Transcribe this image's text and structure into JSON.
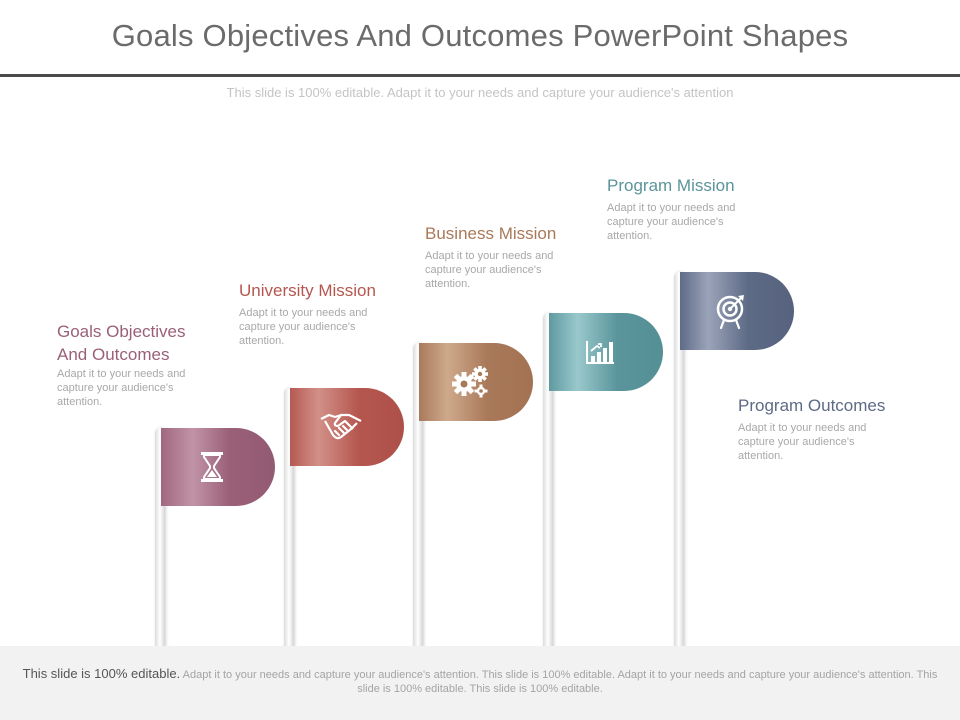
{
  "slide": {
    "title": "Goals Objectives And Outcomes PowerPoint Shapes",
    "subtitle": "This slide is 100% editable. Adapt it to your needs and capture your audience's attention"
  },
  "steps": [
    {
      "heading_line1": "Goals Objectives",
      "heading_line2": "And Outcomes",
      "description": "Adapt it to your needs and capture your audience's attention.",
      "icon": "hourglass-icon",
      "color": "#9a6078"
    },
    {
      "heading": "University Mission",
      "description": "Adapt it to your needs and capture your audience's attention.",
      "icon": "handshake-icon",
      "color": "#b5574f"
    },
    {
      "heading": "Business Mission",
      "description": "Adapt it to your needs and capture your audience's attention.",
      "icon": "gears-icon",
      "color": "#a87959"
    },
    {
      "heading": "Program Mission",
      "description": "Adapt it to your needs and capture your audience's attention.",
      "icon": "bar-chart-icon",
      "color": "#5a959b"
    },
    {
      "heading": "Program Outcomes",
      "description": "Adapt it to your needs and capture your audience's attention.",
      "icon": "target-icon",
      "color": "#5d6a85"
    }
  ],
  "footer": {
    "lead": "This slide is 100% editable.",
    "text": "Adapt it to your needs and capture your audience's attention. This slide is 100% editable. Adapt it to your needs and capture your audience's attention. This slide is 100% editable. This slide is 100% editable."
  }
}
